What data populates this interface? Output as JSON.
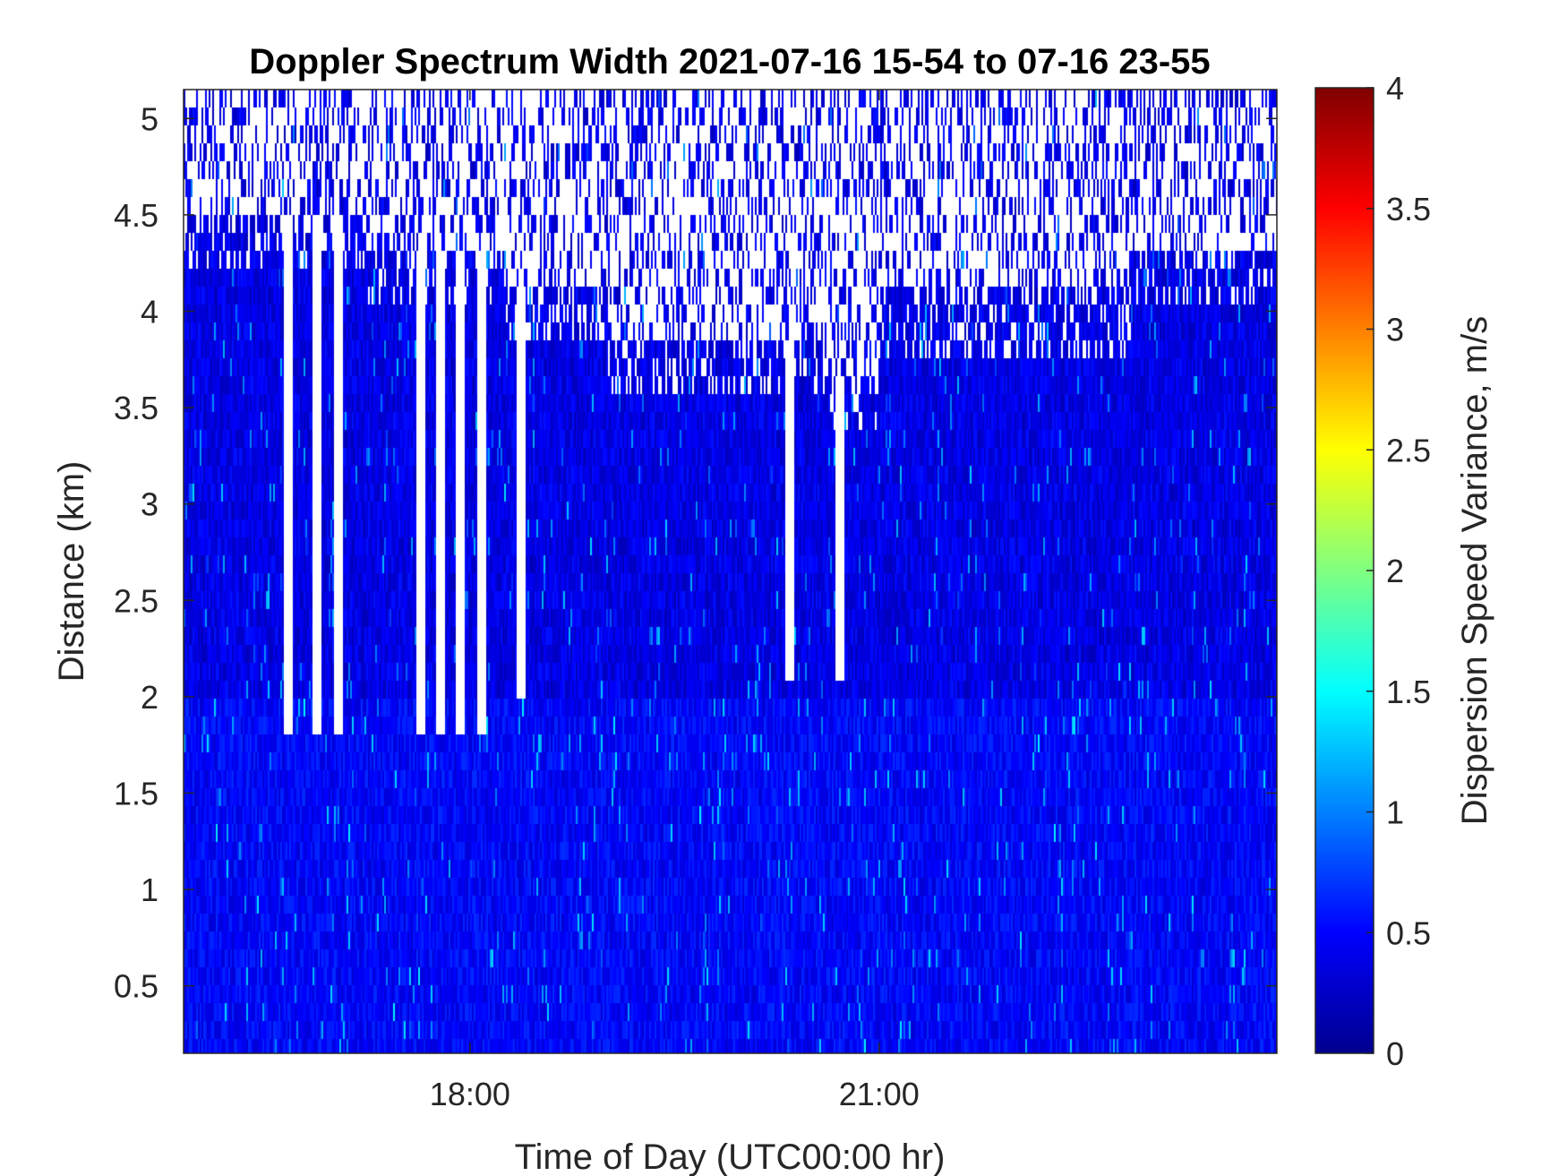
{
  "chart_data": {
    "type": "heatmap",
    "title": "Doppler Spectrum Width 2021-07-16 15-54 to 07-16 23-55",
    "xlabel": "Time of Day (UTC00:00 hr)",
    "ylabel": "Distance (km)",
    "colorbar_label": "Dispersion Speed Variance, m/s",
    "colormap": "jet",
    "x_start": "15:54",
    "x_end": "23:55",
    "x_ticks": [
      {
        "value": "18:00",
        "label": "18:00"
      },
      {
        "value": "21:00",
        "label": "21:00"
      }
    ],
    "ylim": [
      0.15,
      5.15
    ],
    "y_ticks": [
      {
        "value": 0.5,
        "label": "0.5"
      },
      {
        "value": 1,
        "label": "1"
      },
      {
        "value": 1.5,
        "label": "1.5"
      },
      {
        "value": 2,
        "label": "2"
      },
      {
        "value": 2.5,
        "label": "2.5"
      },
      {
        "value": 3,
        "label": "3"
      },
      {
        "value": 3.5,
        "label": "3.5"
      },
      {
        "value": 4,
        "label": "4"
      },
      {
        "value": 4.5,
        "label": "4.5"
      },
      {
        "value": 5,
        "label": "5"
      }
    ],
    "clim": [
      0,
      4
    ],
    "c_ticks": [
      {
        "value": 0,
        "label": "0"
      },
      {
        "value": 0.5,
        "label": "0.5"
      },
      {
        "value": 1,
        "label": "1"
      },
      {
        "value": 1.5,
        "label": "1.5"
      },
      {
        "value": 2,
        "label": "2"
      },
      {
        "value": 2.5,
        "label": "2.5"
      },
      {
        "value": 3,
        "label": "3"
      },
      {
        "value": 3.5,
        "label": "3.5"
      },
      {
        "value": 4,
        "label": "4"
      }
    ],
    "typical_value_below_2km": 0.5,
    "typical_value_2_to_4km": 0.4,
    "missing_data_top_km": [
      {
        "from": "15:54",
        "to": "17:15",
        "top_km": 4.5
      },
      {
        "from": "17:15",
        "to": "18:15",
        "top_km": 4.3
      },
      {
        "from": "18:15",
        "to": "19:00",
        "top_km": 4.15
      },
      {
        "from": "19:00",
        "to": "20:35",
        "top_km": 3.85
      },
      {
        "from": "20:35",
        "to": "21:00",
        "top_km": 3.7
      },
      {
        "from": "21:00",
        "to": "22:50",
        "top_km": 4.1
      },
      {
        "from": "22:50",
        "to": "23:55",
        "top_km": 4.3
      }
    ],
    "gap_columns": [
      {
        "time": "16:40",
        "bottom_km": 1.8
      },
      {
        "time": "16:52",
        "bottom_km": 1.8
      },
      {
        "time": "17:02",
        "bottom_km": 1.8
      },
      {
        "time": "17:38",
        "bottom_km": 1.8
      },
      {
        "time": "17:47",
        "bottom_km": 1.8
      },
      {
        "time": "17:55",
        "bottom_km": 1.8
      },
      {
        "time": "18:05",
        "bottom_km": 1.8
      },
      {
        "time": "18:22",
        "bottom_km": 2.0
      },
      {
        "time": "20:20",
        "bottom_km": 2.1
      },
      {
        "time": "20:42",
        "bottom_km": 2.05
      }
    ]
  }
}
